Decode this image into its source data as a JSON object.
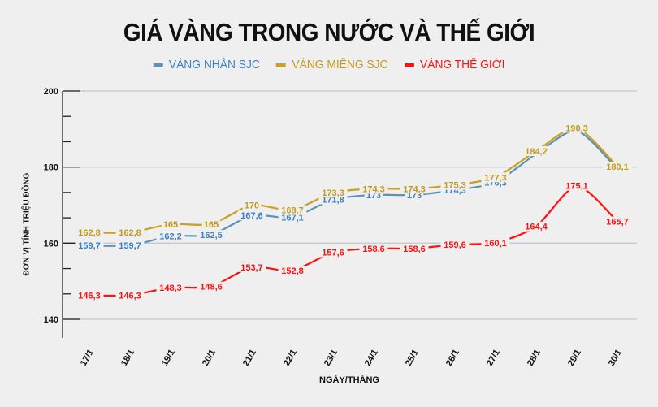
{
  "chart_data": {
    "type": "line",
    "title": "GIÁ VÀNG TRONG NƯỚC VÀ THẾ GIỚI",
    "xlabel": "NGÀY/THÁNG",
    "ylabel": "ĐƠN VỊ TÍNH TRIỆU ĐỒNG",
    "ylim": [
      140,
      200
    ],
    "yticks": [
      140,
      160,
      180,
      200
    ],
    "grid": true,
    "legend_position": "top",
    "categories": [
      "17/1",
      "18/1",
      "19/1",
      "20/1",
      "21/1",
      "22/1",
      "23/1",
      "24/1",
      "25/1",
      "26/1",
      "27/1",
      "28/1",
      "29/1",
      "30/1"
    ],
    "series": [
      {
        "name": "VÀNG NHẪN SJC",
        "color": "#5b93b8",
        "text_color": "#3a80c5",
        "values": [
          159.7,
          159.7,
          162.2,
          162.5,
          167.6,
          167.1,
          171.8,
          173,
          173,
          174.3,
          176.3,
          183.8,
          189.9,
          179.8
        ],
        "labels": [
          "159,7",
          "159,7",
          "162,2",
          "162,5",
          "167,6",
          "167,1",
          "171,8",
          "173",
          "173",
          "174,3",
          "176,3",
          "",
          "",
          ""
        ]
      },
      {
        "name": "VÀNG MIẾNG SJC",
        "color": "#c9a021",
        "text_color": "#c49a1c",
        "values": [
          162.8,
          162.8,
          165,
          165,
          170,
          168.7,
          173.3,
          174.3,
          174.3,
          175.3,
          177.3,
          184.2,
          190.3,
          180.1
        ],
        "labels": [
          "162,8",
          "162,8",
          "165",
          "165",
          "170",
          "168,7",
          "173,3",
          "174,3",
          "174,3",
          "175,3",
          "177,3",
          "184,2",
          "190,3",
          "180,1"
        ]
      },
      {
        "name": "VÀNG THẾ GIỚI",
        "color": "#ff0f0f",
        "text_color": "#ff0f0f",
        "values": [
          146.3,
          146.3,
          148.3,
          148.6,
          153.7,
          152.8,
          157.6,
          158.6,
          158.6,
          159.6,
          160.1,
          164.4,
          175.1,
          165.7
        ],
        "labels": [
          "146,3",
          "146,3",
          "148,3",
          "148,6",
          "153,7",
          "152,8",
          "157,6",
          "158,6",
          "158,6",
          "159,6",
          "160,1",
          "164,4",
          "175,1",
          "165,7"
        ]
      }
    ]
  },
  "header": {
    "title": "GIÁ VÀNG TRONG NƯỚC VÀ THẾ GIỚI"
  },
  "legend": {
    "items": [
      {
        "label": "VÀNG NHẪN SJC",
        "swatch_color": "#5b93b8",
        "text_color": "#3a80c5"
      },
      {
        "label": "VÀNG MIẾNG SJC",
        "swatch_color": "#c9a021",
        "text_color": "#c49a1c"
      },
      {
        "label": "VÀNG THẾ GIỚI",
        "swatch_color": "#ff0f0f",
        "text_color": "#ff0f0f"
      }
    ]
  },
  "axes": {
    "y_title": "ĐƠN VỊ TÍNH TRIỆU ĐỒNG",
    "x_title": "NGÀY/THÁNG"
  }
}
